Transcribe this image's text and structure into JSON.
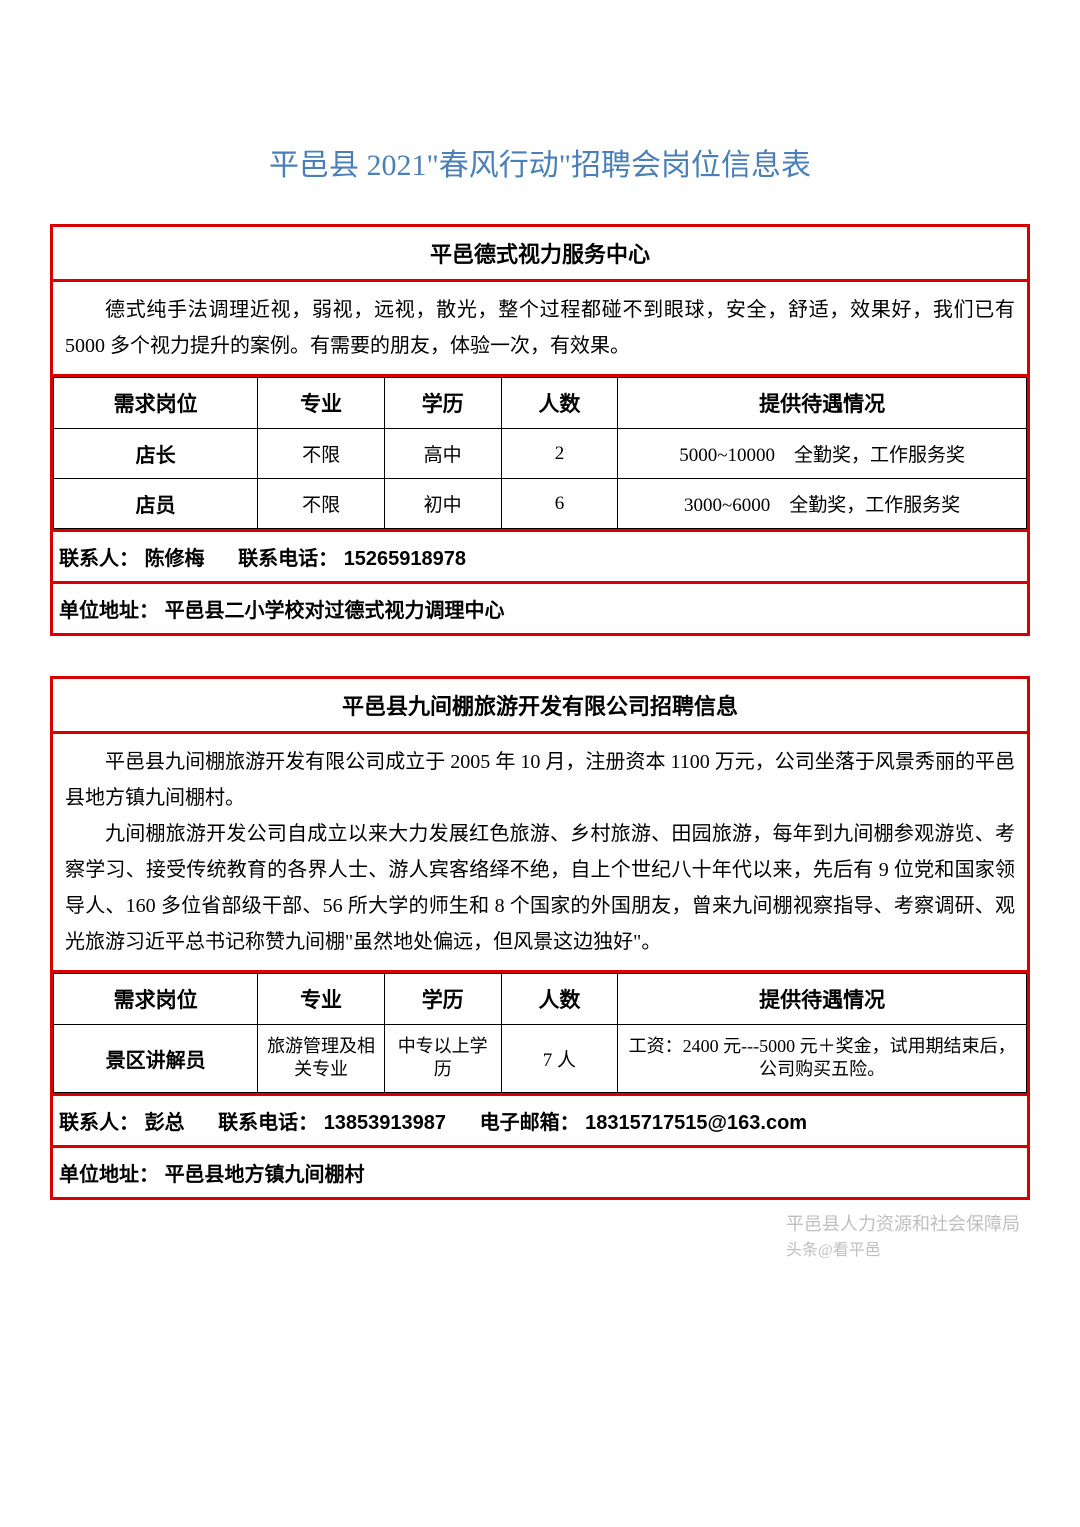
{
  "pageTitle": "平邑县 2021\"春风行动\"招聘会岗位信息表",
  "columns": {
    "position": "需求岗位",
    "major": "专业",
    "education": "学历",
    "count": "人数",
    "treatment": "提供待遇情况"
  },
  "labels": {
    "contact": "联系人：",
    "phone": "联系电话：",
    "email": "电子邮箱：",
    "address": "单位地址："
  },
  "section1": {
    "title": "平邑德式视力服务中心",
    "desc": "德式纯手法调理近视，弱视，远视，散光，整个过程都碰不到眼球，安全，舒适，效果好，我们已有 5000 多个视力提升的案例。有需要的朋友，体验一次，有效果。",
    "rows": [
      {
        "position": "店长",
        "major": "不限",
        "education": "高中",
        "count": "2",
        "treatment": "5000~10000　全勤奖，工作服务奖"
      },
      {
        "position": "店员",
        "major": "不限",
        "education": "初中",
        "count": "6",
        "treatment": "3000~6000　全勤奖，工作服务奖"
      }
    ],
    "contact": "陈修梅",
    "phone": "15265918978",
    "address": "平邑县二小学校对过德式视力调理中心"
  },
  "section2": {
    "title": "平邑县九间棚旅游开发有限公司招聘信息",
    "desc1": "平邑县九间棚旅游开发有限公司成立于 2005 年 10 月，注册资本 1100 万元，公司坐落于风景秀丽的平邑县地方镇九间棚村。",
    "desc2": "九间棚旅游开发公司自成立以来大力发展红色旅游、乡村旅游、田园旅游，每年到九间棚参观游览、考察学习、接受传统教育的各界人士、游人宾客络绎不绝，自上个世纪八十年代以来，先后有 9 位党和国家领导人、160 多位省部级干部、56 所大学的师生和 8 个国家的外国朋友，曾来九间棚视察指导、考察调研、观光旅游习近平总书记称赞九间棚\"虽然地处偏远，但风景这边独好\"。",
    "rows": [
      {
        "position": "景区讲解员",
        "major": "旅游管理及相关专业",
        "education": "中专以上学历",
        "count": "7 人",
        "treatment": "工资：2400 元---5000 元＋奖金，试用期结束后，公司购买五险。"
      }
    ],
    "contact": "彭总",
    "phone": "13853913987",
    "email": "18315717515@163.com",
    "address": "平邑县地方镇九间棚村"
  },
  "watermark": {
    "line1": "平邑县人力资源和社会保障局",
    "line2": "头条@看平邑"
  },
  "colors": {
    "titleColor": "#4a7fb8",
    "borderColor": "#d80000",
    "textColor": "#000000",
    "bgColor": "#ffffff",
    "watermarkColor": "#aaaaaa"
  }
}
